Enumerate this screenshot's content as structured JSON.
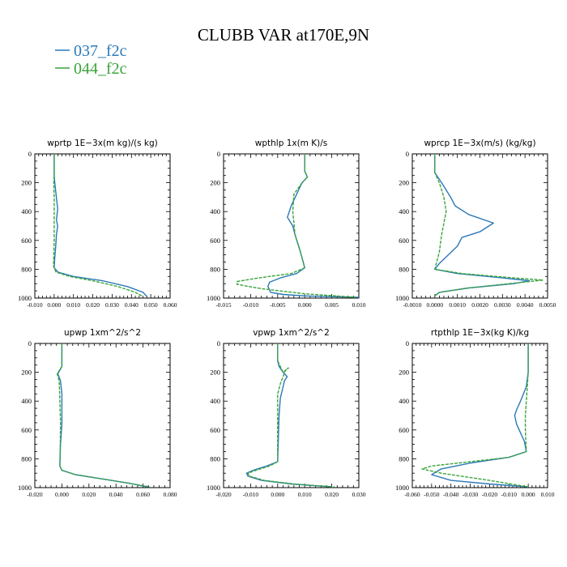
{
  "title": "CLUBB VAR at170E,9N",
  "colors": {
    "series1": "#2a78b8",
    "series2": "#3aa43a",
    "axis": "#000000"
  },
  "legend": [
    {
      "name": "037_f2c",
      "color": "#2a78b8"
    },
    {
      "name": "044_f2c",
      "color": "#3aa43a"
    }
  ],
  "chart_data": [
    {
      "type": "line",
      "title": "wprtp   1E−3x(m kg)/(s kg)",
      "xlabel": "",
      "ylabel": "",
      "xlim": [
        -0.01,
        0.06
      ],
      "ylim": [
        1000,
        0
      ],
      "xticks": [
        -0.01,
        0.0,
        0.01,
        0.02,
        0.03,
        0.04,
        0.05,
        0.06
      ],
      "xticklabels": [
        "-0.010",
        "0.000",
        "0.010",
        "0.020",
        "0.030",
        "0.040",
        "0.050",
        "0.060"
      ],
      "yticks": [
        0,
        200,
        400,
        600,
        800,
        1000
      ],
      "yticklabels": [
        "0",
        "200",
        "400",
        "600",
        "800",
        "1000"
      ],
      "series": [
        {
          "name": "037_f2c",
          "x": [
            0.0,
            0.0,
            0.0003,
            0.001,
            0.0018,
            0.0012,
            0.0018,
            0.0012,
            0.0008,
            0.0003,
            0.0,
            0.002,
            0.01,
            0.025,
            0.038,
            0.046,
            0.048
          ],
          "y": [
            0,
            150,
            200,
            280,
            380,
            460,
            500,
            560,
            640,
            720,
            790,
            820,
            850,
            880,
            920,
            960,
            990
          ]
        },
        {
          "name": "044_f2c",
          "x": [
            0.0,
            0.0,
            -0.0002,
            0.0,
            0.0,
            0.0,
            0.0,
            -0.0003,
            0.001,
            0.008,
            0.02,
            0.033,
            0.042,
            0.046
          ],
          "y": [
            0,
            150,
            200,
            300,
            400,
            500,
            600,
            780,
            820,
            850,
            880,
            920,
            960,
            990
          ]
        }
      ]
    },
    {
      "type": "line",
      "title": "wpthlp   1x(m K)/s",
      "xlabel": "",
      "ylabel": "",
      "xlim": [
        -0.015,
        0.01
      ],
      "ylim": [
        1000,
        0
      ],
      "xticks": [
        -0.015,
        -0.01,
        -0.005,
        0.0,
        0.005,
        0.01
      ],
      "xticklabels": [
        "-0.015",
        "-0.010",
        "-0.005",
        "0.000",
        "0.005",
        "0.010"
      ],
      "yticks": [
        0,
        200,
        400,
        600,
        800,
        1000
      ],
      "yticklabels": [
        "0",
        "200",
        "400",
        "600",
        "800",
        "1000"
      ],
      "series": [
        {
          "name": "037_f2c",
          "x": [
            0.0,
            0.0,
            0.0005,
            -0.0005,
            -0.0015,
            -0.0025,
            -0.0032,
            -0.0022,
            -0.0018,
            -0.0008,
            0.0,
            -0.0015,
            -0.0045,
            -0.0065,
            -0.0068,
            -0.0063,
            -0.004,
            0.0,
            0.01
          ],
          "y": [
            0,
            120,
            160,
            200,
            280,
            360,
            440,
            500,
            560,
            680,
            790,
            830,
            860,
            890,
            920,
            960,
            975,
            985,
            995
          ]
        },
        {
          "name": "044_f2c",
          "x": [
            0.0,
            0.0,
            0.0005,
            -0.0005,
            -0.002,
            -0.0022,
            -0.0018,
            -0.0008,
            0.0,
            -0.0025,
            -0.0085,
            -0.0125,
            -0.0125,
            -0.008,
            0.0,
            0.0095
          ],
          "y": [
            0,
            120,
            160,
            200,
            280,
            400,
            560,
            680,
            790,
            830,
            860,
            885,
            905,
            935,
            970,
            995
          ]
        }
      ]
    },
    {
      "type": "line",
      "title": "wprcp   1E−3x(m/s) (kg/kg)",
      "xlabel": "",
      "ylabel": "",
      "xlim": [
        -0.001,
        0.005
      ],
      "ylim": [
        1000,
        0
      ],
      "xticks": [
        -0.001,
        0.0,
        0.001,
        0.002,
        0.003,
        0.004,
        0.005
      ],
      "xticklabels": [
        "-0.0010",
        "0.0000",
        "0.0010",
        "0.0020",
        "0.0030",
        "0.0040",
        "0.0050"
      ],
      "yticks": [
        0,
        200,
        400,
        600,
        800,
        1000
      ],
      "yticklabels": [
        "0",
        "200",
        "400",
        "600",
        "800",
        "1000"
      ],
      "series": [
        {
          "name": "037_f2c",
          "x": [
            0.0,
            0.0,
            0.0003,
            0.0007,
            0.0009,
            0.0015,
            0.0026,
            0.002,
            0.0012,
            0.001,
            0.0006,
            0.0002,
            0.0,
            0.001,
            0.003,
            0.0042,
            0.0035,
            0.0015,
            0.0002,
            0.0
          ],
          "y": [
            0,
            130,
            200,
            300,
            360,
            420,
            480,
            540,
            580,
            640,
            700,
            760,
            800,
            830,
            860,
            880,
            900,
            930,
            960,
            985
          ]
        },
        {
          "name": "044_f2c",
          "x": [
            0.0,
            0.0,
            0.0002,
            0.0004,
            0.0005,
            0.0004,
            0.0003,
            0.0002,
            0.0,
            0.0012,
            0.0035,
            0.0048,
            0.0036,
            0.0015,
            0.0002,
            0.0
          ],
          "y": [
            0,
            130,
            200,
            300,
            400,
            480,
            560,
            680,
            800,
            830,
            860,
            875,
            895,
            930,
            960,
            985
          ]
        }
      ]
    },
    {
      "type": "line",
      "title": "upwp   1xm^2/s^2",
      "xlabel": "",
      "ylabel": "",
      "xlim": [
        -0.02,
        0.08
      ],
      "ylim": [
        1000,
        0
      ],
      "xticks": [
        -0.02,
        0.0,
        0.02,
        0.04,
        0.06,
        0.08
      ],
      "xticklabels": [
        "-0.020",
        "0.000",
        "0.020",
        "0.040",
        "0.060",
        "0.080"
      ],
      "yticks": [
        0,
        200,
        400,
        600,
        800,
        1000
      ],
      "yticklabels": [
        "0",
        "200",
        "400",
        "600",
        "800",
        "1000"
      ],
      "series": [
        {
          "name": "037_f2c",
          "x": [
            0.0,
            0.0,
            -0.003,
            -0.001,
            0.0,
            0.0,
            0.0,
            -0.001,
            -0.0015,
            0.0,
            0.01,
            0.03,
            0.05,
            0.063
          ],
          "y": [
            0,
            160,
            210,
            260,
            350,
            450,
            560,
            700,
            850,
            880,
            910,
            940,
            970,
            995
          ]
        },
        {
          "name": "044_f2c",
          "x": [
            0.0,
            0.0,
            -0.0035,
            -0.002,
            -0.0015,
            -0.001,
            -0.0012,
            -0.0015,
            0.0,
            0.01,
            0.03,
            0.05,
            0.065
          ],
          "y": [
            0,
            160,
            210,
            260,
            400,
            550,
            700,
            850,
            880,
            910,
            940,
            970,
            995
          ]
        }
      ]
    },
    {
      "type": "line",
      "title": "vpwp   1xm^2/s^2",
      "xlabel": "",
      "ylabel": "",
      "xlim": [
        -0.02,
        0.03
      ],
      "ylim": [
        1000,
        0
      ],
      "xticks": [
        -0.02,
        -0.01,
        0.0,
        0.01,
        0.02,
        0.03
      ],
      "xticklabels": [
        "-0.020",
        "-0.010",
        "0.000",
        "0.010",
        "0.020",
        "0.030"
      ],
      "yticks": [
        0,
        200,
        400,
        600,
        800,
        1000
      ],
      "yticklabels": [
        "0",
        "200",
        "400",
        "600",
        "800",
        "1000"
      ],
      "series": [
        {
          "name": "037_f2c",
          "x": [
            0.0,
            0.0,
            0.0005,
            0.002,
            0.0035,
            0.0025,
            0.002,
            0.001,
            0.0005,
            0.0,
            -0.004,
            -0.009,
            -0.0115,
            -0.011,
            -0.006,
            0.005,
            0.02
          ],
          "y": [
            0,
            120,
            160,
            200,
            230,
            260,
            300,
            380,
            500,
            820,
            850,
            880,
            900,
            920,
            950,
            975,
            995
          ]
        },
        {
          "name": "044_f2c",
          "x": [
            0.0,
            0.0,
            0.001,
            0.002,
            0.004,
            0.003,
            0.001,
            0.0,
            0.0,
            -0.003,
            -0.008,
            -0.011,
            -0.0105,
            -0.005,
            0.006,
            0.021
          ],
          "y": [
            0,
            120,
            160,
            200,
            170,
            180,
            280,
            350,
            820,
            850,
            880,
            900,
            920,
            950,
            975,
            995
          ]
        }
      ]
    },
    {
      "type": "line",
      "title": "rtpthlp   1E−3x(kg K)/kg",
      "xlabel": "",
      "ylabel": "",
      "xlim": [
        -0.06,
        0.01
      ],
      "ylim": [
        1000,
        0
      ],
      "xticks": [
        -0.06,
        -0.05,
        -0.04,
        -0.03,
        -0.02,
        -0.01,
        0.0,
        0.01
      ],
      "xticklabels": [
        "-0.060",
        "-0.050",
        "-0.040",
        "-0.030",
        "-0.020",
        "-0.010",
        "0.000",
        "0.010"
      ],
      "yticks": [
        0,
        200,
        400,
        600,
        800,
        1000
      ],
      "yticklabels": [
        "0",
        "200",
        "400",
        "600",
        "800",
        "1000"
      ],
      "series": [
        {
          "name": "037_f2c",
          "x": [
            0.0,
            0.0,
            -0.001,
            -0.004,
            -0.006,
            -0.007,
            -0.006,
            -0.002,
            -0.001,
            -0.01,
            -0.03,
            -0.045,
            -0.05,
            -0.04,
            -0.02,
            0.0
          ],
          "y": [
            0,
            200,
            300,
            400,
            460,
            500,
            560,
            680,
            750,
            790,
            830,
            870,
            910,
            950,
            975,
            995
          ]
        },
        {
          "name": "044_f2c",
          "x": [
            0.0,
            0.0,
            -0.0005,
            -0.001,
            -0.0015,
            -0.0015,
            -0.001,
            -0.01,
            -0.03,
            -0.05,
            -0.055,
            -0.045,
            -0.02,
            0.0
          ],
          "y": [
            0,
            200,
            300,
            400,
            500,
            600,
            750,
            790,
            820,
            850,
            870,
            900,
            950,
            995
          ]
        }
      ]
    }
  ]
}
